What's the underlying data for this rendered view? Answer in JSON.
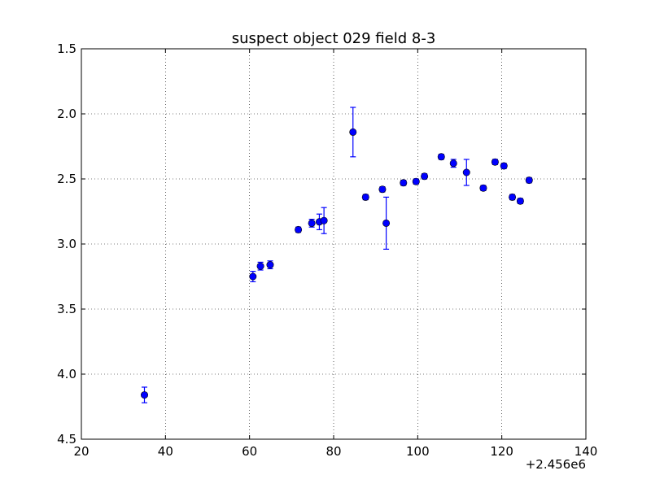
{
  "chart_data": {
    "type": "scatter",
    "title": "suspect object 029 field 8-3",
    "xlabel": "",
    "ylabel": "",
    "x_offset_label": "+2.456e6",
    "xlim": [
      20,
      140
    ],
    "ylim": [
      4.5,
      1.5
    ],
    "y_inverted": true,
    "x_ticks": [
      20,
      40,
      60,
      80,
      100,
      120,
      140
    ],
    "x_tick_labels": [
      "20",
      "40",
      "60",
      "80",
      "100",
      "120",
      "140"
    ],
    "y_ticks": [
      1.5,
      2.0,
      2.5,
      3.0,
      3.5,
      4.0,
      4.5
    ],
    "y_tick_labels": [
      "1.5",
      "2.0",
      "2.5",
      "3.0",
      "3.5",
      "4.0",
      "4.5"
    ],
    "grid": true,
    "marker_color": "#0000ff",
    "series": [
      {
        "points": [
          {
            "x": 35.0,
            "y": 4.16,
            "err": 0.06
          },
          {
            "x": 60.8,
            "y": 3.25,
            "err": 0.04
          },
          {
            "x": 62.6,
            "y": 3.17,
            "err": 0.03
          },
          {
            "x": 64.9,
            "y": 3.16,
            "err": 0.03
          },
          {
            "x": 71.6,
            "y": 2.89,
            "err": 0.02
          },
          {
            "x": 74.8,
            "y": 2.84,
            "err": 0.03
          },
          {
            "x": 76.6,
            "y": 2.83,
            "err": 0.06
          },
          {
            "x": 77.7,
            "y": 2.82,
            "err": 0.1
          },
          {
            "x": 84.6,
            "y": 2.14,
            "err": 0.19
          },
          {
            "x": 87.6,
            "y": 2.64,
            "err": 0.02
          },
          {
            "x": 91.6,
            "y": 2.58,
            "err": 0.02
          },
          {
            "x": 92.5,
            "y": 2.84,
            "err": 0.2
          },
          {
            "x": 96.6,
            "y": 2.53,
            "err": 0.02
          },
          {
            "x": 99.6,
            "y": 2.52,
            "err": 0.02
          },
          {
            "x": 101.6,
            "y": 2.48,
            "err": 0.02
          },
          {
            "x": 105.6,
            "y": 2.33,
            "err": 0.02
          },
          {
            "x": 108.5,
            "y": 2.38,
            "err": 0.03
          },
          {
            "x": 111.6,
            "y": 2.45,
            "err": 0.1
          },
          {
            "x": 115.6,
            "y": 2.57,
            "err": 0.02
          },
          {
            "x": 118.4,
            "y": 2.37,
            "err": 0.02
          },
          {
            "x": 120.5,
            "y": 2.4,
            "err": 0.02
          },
          {
            "x": 122.5,
            "y": 2.64,
            "err": 0.02
          },
          {
            "x": 124.4,
            "y": 2.67,
            "err": 0.02
          },
          {
            "x": 126.5,
            "y": 2.51,
            "err": 0.02
          }
        ]
      }
    ]
  }
}
